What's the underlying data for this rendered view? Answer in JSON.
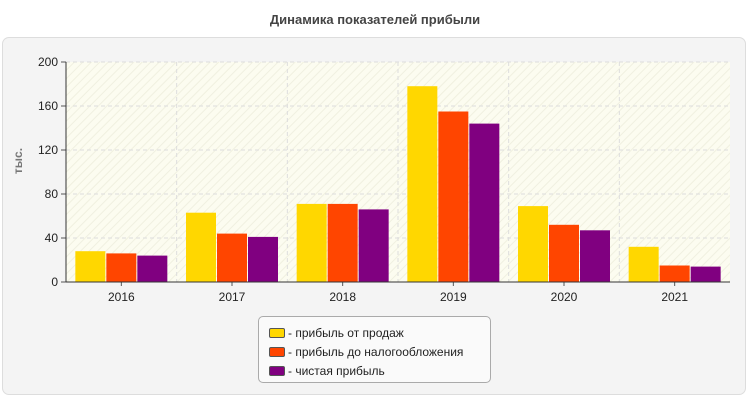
{
  "chart_data": {
    "type": "bar",
    "title": "Динамика показателей прибыли",
    "ylabel": "тыс.",
    "xlabel": "",
    "categories": [
      "2016",
      "2017",
      "2018",
      "2019",
      "2020",
      "2021"
    ],
    "ylim": [
      0,
      200
    ],
    "yticks": [
      "0",
      "40",
      "80",
      "120",
      "160",
      "200"
    ],
    "grid": true,
    "legend_position": "bottom",
    "series": [
      {
        "name": "- прибыль от продаж",
        "color": "#FFD700",
        "values": [
          28,
          63,
          71,
          178,
          69,
          32
        ]
      },
      {
        "name": "- прибыль до налогообложения",
        "color": "#FF4500",
        "values": [
          26,
          44,
          71,
          155,
          52,
          15
        ]
      },
      {
        "name": "- чистая прибыль",
        "color": "#800080",
        "values": [
          24,
          41,
          66,
          144,
          47,
          14
        ]
      }
    ]
  }
}
